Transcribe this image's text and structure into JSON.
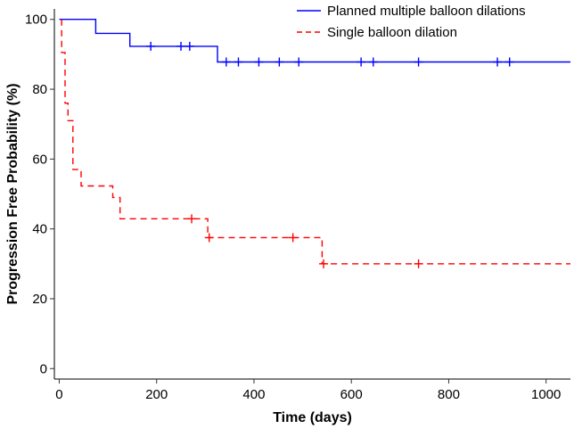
{
  "chart_data": {
    "type": "line",
    "step": true,
    "title": "",
    "xlabel": "Time (days)",
    "ylabel": "Progression Free Probability (%)",
    "xlim": [
      -10,
      1050
    ],
    "ylim": [
      -3,
      103
    ],
    "xticks": [
      0,
      200,
      400,
      600,
      800,
      1000
    ],
    "yticks": [
      0,
      20,
      40,
      60,
      80,
      100
    ],
    "grid": false,
    "legend_position": "top-right",
    "series": [
      {
        "name": "Planned multiple balloon dilations",
        "color": "#0000ff",
        "dash": "solid",
        "x": [
          0,
          75,
          75,
          145,
          145,
          325,
          325,
          1050
        ],
        "y": [
          100,
          100,
          96,
          96,
          92.3,
          92.3,
          87.8,
          87.8
        ],
        "censored": [
          {
            "x": 188,
            "y": 92.3
          },
          {
            "x": 250,
            "y": 92.3
          },
          {
            "x": 268,
            "y": 92.3
          },
          {
            "x": 343,
            "y": 87.8
          },
          {
            "x": 368,
            "y": 87.8
          },
          {
            "x": 410,
            "y": 87.8
          },
          {
            "x": 452,
            "y": 87.8
          },
          {
            "x": 492,
            "y": 87.8
          },
          {
            "x": 620,
            "y": 87.8
          },
          {
            "x": 645,
            "y": 87.8
          },
          {
            "x": 738,
            "y": 87.8
          },
          {
            "x": 900,
            "y": 87.8
          },
          {
            "x": 925,
            "y": 87.8
          }
        ]
      },
      {
        "name": "Single balloon dilation",
        "color": "#ff0000",
        "dash": "dashed",
        "x": [
          5,
          5,
          12,
          12,
          18,
          18,
          28,
          28,
          45,
          45,
          110,
          110,
          125,
          125,
          305,
          305,
          540,
          540,
          1050
        ],
        "y": [
          100,
          90.5,
          90.5,
          76,
          76,
          71,
          71,
          57,
          57,
          52.3,
          52.3,
          49,
          49,
          42.9,
          42.9,
          37.5,
          37.5,
          30,
          30
        ],
        "censored": [
          {
            "x": 272,
            "y": 42.9
          },
          {
            "x": 308,
            "y": 37.5
          },
          {
            "x": 480,
            "y": 37.5
          },
          {
            "x": 543,
            "y": 30
          },
          {
            "x": 738,
            "y": 30
          }
        ]
      }
    ]
  }
}
